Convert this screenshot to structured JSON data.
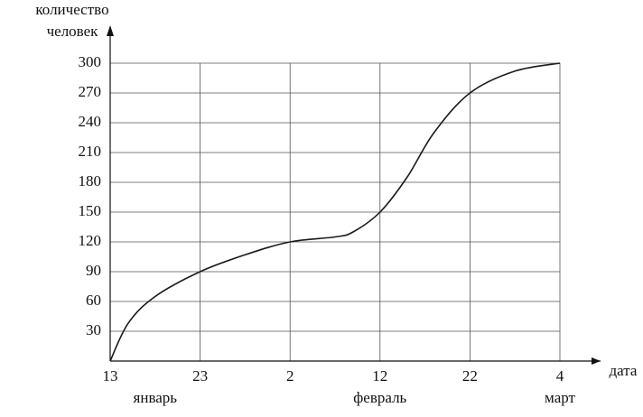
{
  "chart_data": {
    "type": "line",
    "y_label": [
      "количество",
      "человек"
    ],
    "x_label": "дата",
    "x": [
      0,
      2,
      5,
      10,
      15,
      20,
      25,
      27,
      30,
      33,
      36,
      40,
      45,
      50
    ],
    "series": [
      {
        "color": "#1a1a1a",
        "values": [
          0,
          38,
          65,
          90,
          107,
          120,
          125,
          130,
          150,
          185,
          230,
          270,
          292,
          300
        ]
      }
    ],
    "xlim": [
      0,
      50
    ],
    "xticks": [
      {
        "value": 0,
        "label": "13"
      },
      {
        "value": 10,
        "label": "23"
      },
      {
        "value": 20,
        "label": "2"
      },
      {
        "value": 30,
        "label": "12"
      },
      {
        "value": 40,
        "label": "22"
      },
      {
        "value": 50,
        "label": "4"
      }
    ],
    "month_labels": [
      {
        "value": 5,
        "label": "январь"
      },
      {
        "value": 30,
        "label": "февраль"
      },
      {
        "value": 50,
        "label": "март"
      }
    ],
    "ylim": [
      0,
      300
    ],
    "yticks": [
      30,
      60,
      90,
      120,
      150,
      180,
      210,
      240,
      270,
      300
    ],
    "grid": true
  }
}
